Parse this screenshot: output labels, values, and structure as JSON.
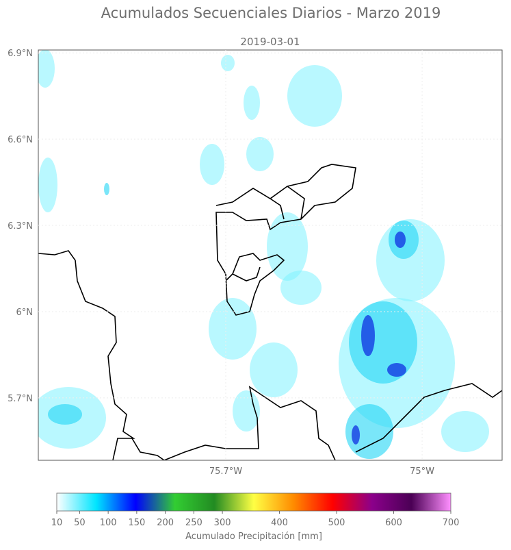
{
  "title": "Acumulados Secuenciales Diarios - Marzo 2019",
  "subtitle": "2019-03-01",
  "map": {
    "ylim": [
      5.483,
      6.91
    ],
    "xlim": [
      -76.368,
      -74.715
    ],
    "yticks": [
      {
        "value": 6.9,
        "label": "6.9°N"
      },
      {
        "value": 6.6,
        "label": "6.6°N"
      },
      {
        "value": 6.3,
        "label": "6.3°N"
      },
      {
        "value": 6,
        "label": "6°N"
      },
      {
        "value": 5.7,
        "label": "5.7°N"
      }
    ],
    "xticks": [
      {
        "value": -75.7,
        "label": "75.7°W"
      },
      {
        "value": -75,
        "label": "75°W"
      }
    ]
  },
  "colorbar": {
    "lim": [
      10,
      700
    ],
    "ticks": [
      10,
      50,
      100,
      150,
      200,
      250,
      300,
      400,
      500,
      600,
      700
    ],
    "colors": [
      "#ffffff",
      "#00e5ff",
      "#0000ff",
      "#32cd32",
      "#228b22",
      "#ffff44",
      "#ff8c00",
      "#ff0000",
      "#8b008b",
      "#4b0055",
      "#ff90ff"
    ],
    "label": "Acumulado Precipitación [mm]"
  }
}
